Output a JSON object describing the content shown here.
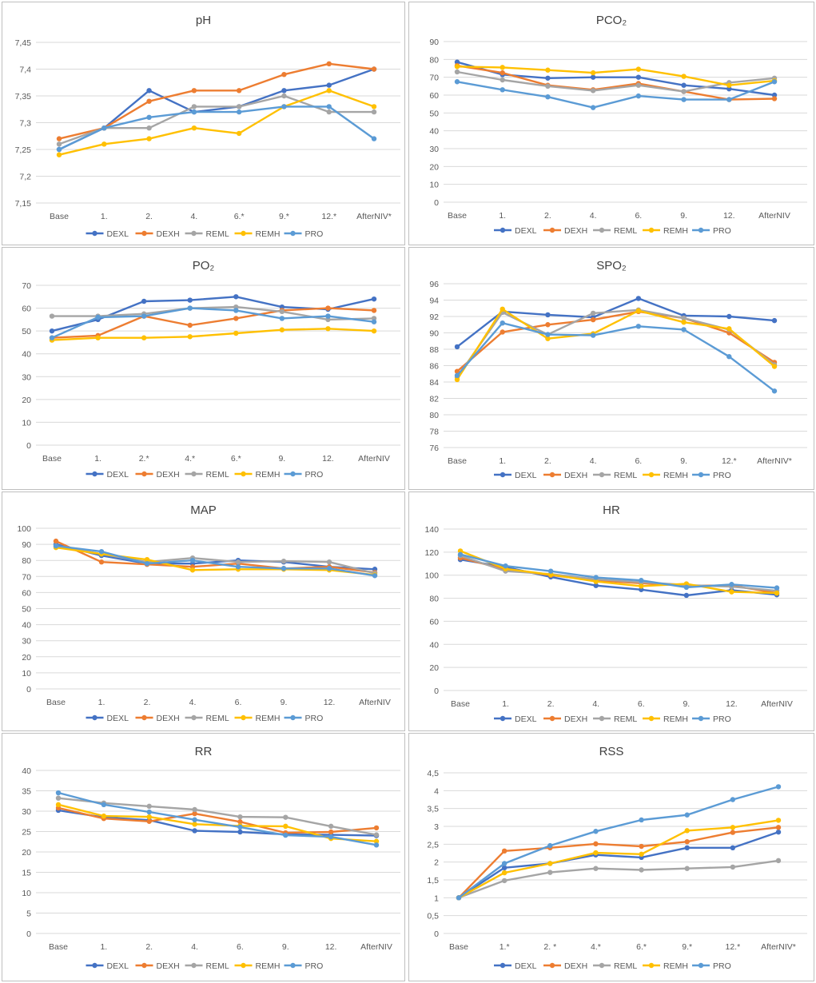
{
  "legend_names": [
    "DEXL",
    "DEXH",
    "REML",
    "REMH",
    "PRO"
  ],
  "colors": {
    "DEXL": "#4472c4",
    "DEXH": "#ed7d31",
    "REML": "#a5a5a5",
    "REMH": "#ffc000",
    "PRO": "#5b9bd5"
  },
  "chart_data": [
    {
      "id": "ph",
      "type": "line",
      "title": "pH",
      "categories": [
        "Base",
        "1.",
        "2.",
        "4.",
        "6.*",
        "9.*",
        "12.*",
        "AfterNIV*"
      ],
      "ylim": [
        7.15,
        7.45
      ],
      "ystep": 0.05,
      "ydec": 2,
      "decimal_comma": true,
      "yticks": [
        "7,15",
        "7,2",
        "7,25",
        "7,3",
        "7,35",
        "7,4",
        "7,45"
      ],
      "series": [
        {
          "name": "DEXL",
          "values": [
            7.25,
            7.29,
            7.36,
            7.32,
            7.33,
            7.36,
            7.37,
            7.4
          ]
        },
        {
          "name": "DEXH",
          "values": [
            7.27,
            7.29,
            7.34,
            7.36,
            7.36,
            7.39,
            7.41,
            7.4
          ]
        },
        {
          "name": "REML",
          "values": [
            7.26,
            7.29,
            7.29,
            7.33,
            7.33,
            7.35,
            7.32,
            7.32
          ]
        },
        {
          "name": "REMH",
          "values": [
            7.24,
            7.26,
            7.27,
            7.29,
            7.28,
            7.33,
            7.36,
            7.33
          ]
        },
        {
          "name": "PRO",
          "values": [
            7.25,
            7.29,
            7.31,
            7.32,
            7.32,
            7.33,
            7.33,
            7.27
          ]
        }
      ]
    },
    {
      "id": "pco2",
      "type": "line",
      "title": "PCO₂",
      "categories": [
        "Base",
        "1.",
        "2.",
        "4.",
        "6.",
        "9.",
        "12.",
        "AfterNIV"
      ],
      "ylim": [
        0,
        90
      ],
      "ystep": 10,
      "ydec": 0,
      "yticks": [
        "0",
        "10",
        "20",
        "30",
        "40",
        "50",
        "60",
        "70",
        "80",
        "90"
      ],
      "series": [
        {
          "name": "DEXL",
          "values": [
            78.5,
            71.5,
            69.5,
            70,
            70,
            65.5,
            63.5,
            60
          ]
        },
        {
          "name": "DEXH",
          "values": [
            76.5,
            72.5,
            65.5,
            63,
            66.5,
            62,
            57.5,
            58
          ]
        },
        {
          "name": "REML",
          "values": [
            73,
            68.5,
            65,
            62.5,
            65.5,
            62,
            67,
            69.5
          ]
        },
        {
          "name": "REMH",
          "values": [
            76,
            75.5,
            74,
            72.5,
            74.5,
            70.5,
            65.5,
            68
          ]
        },
        {
          "name": "PRO",
          "values": [
            67.5,
            63,
            59,
            53,
            59.5,
            57.5,
            57.5,
            67.5
          ]
        }
      ]
    },
    {
      "id": "po2",
      "type": "line",
      "title": "PO₂",
      "categories": [
        "Base",
        "1.",
        "2.*",
        "4.*",
        "6.*",
        "9.",
        "12.",
        "AfterNIV"
      ],
      "ylim": [
        0,
        70
      ],
      "ystep": 10,
      "ydec": 0,
      "yticks": [
        "0",
        "10",
        "20",
        "30",
        "40",
        "50",
        "60",
        "70"
      ],
      "series": [
        {
          "name": "DEXL",
          "values": [
            50,
            55,
            63,
            63.5,
            65,
            60.5,
            59.5,
            64
          ]
        },
        {
          "name": "DEXH",
          "values": [
            47,
            48,
            56.5,
            52.5,
            55.5,
            59,
            60,
            59
          ]
        },
        {
          "name": "REML",
          "values": [
            56.5,
            56.5,
            57.5,
            60,
            60.5,
            58.5,
            55,
            55.5
          ]
        },
        {
          "name": "REMH",
          "values": [
            46,
            47,
            47,
            47.5,
            49,
            50.5,
            51,
            50
          ]
        },
        {
          "name": "PRO",
          "values": [
            47,
            56,
            56.5,
            60,
            59,
            55.5,
            56.5,
            54
          ]
        }
      ]
    },
    {
      "id": "spo2",
      "type": "line",
      "title": "SPO₂",
      "categories": [
        "Base",
        "1.",
        "2.",
        "4.",
        "6.",
        "9.",
        "12.*",
        "AfterNIV*"
      ],
      "ylim": [
        76,
        96
      ],
      "ystep": 2,
      "ydec": 0,
      "yticks": [
        "76",
        "78",
        "80",
        "82",
        "84",
        "86",
        "88",
        "90",
        "92",
        "94",
        "96"
      ],
      "series": [
        {
          "name": "DEXL",
          "values": [
            88.3,
            92.6,
            92.2,
            91.9,
            94.2,
            92.1,
            92,
            91.5
          ]
        },
        {
          "name": "DEXH",
          "values": [
            85.3,
            90.1,
            91,
            91.6,
            92.6,
            91.8,
            90,
            86.4
          ]
        },
        {
          "name": "REML",
          "values": [
            84.6,
            92.5,
            89.8,
            92.4,
            92.8,
            91.8,
            90.4,
            86.1
          ]
        },
        {
          "name": "REMH",
          "values": [
            84.3,
            92.9,
            89.3,
            89.9,
            92.7,
            91.3,
            90.5,
            85.9
          ]
        },
        {
          "name": "PRO",
          "values": [
            84.8,
            91.2,
            89.8,
            89.7,
            90.8,
            90.4,
            87.1,
            82.9
          ]
        }
      ]
    },
    {
      "id": "map",
      "type": "line",
      "title": "MAP",
      "categories": [
        "Base",
        "1.",
        "2.",
        "4.",
        "6.",
        "9.",
        "12.",
        "AfterNIV"
      ],
      "ylim": [
        0,
        100
      ],
      "ystep": 10,
      "ydec": 0,
      "yticks": [
        "0",
        "10",
        "20",
        "30",
        "40",
        "50",
        "60",
        "70",
        "80",
        "90",
        "100"
      ],
      "series": [
        {
          "name": "DEXL",
          "values": [
            90,
            83,
            78,
            78,
            80,
            79,
            76,
            74.5
          ]
        },
        {
          "name": "DEXH",
          "values": [
            92,
            79,
            77.5,
            76,
            78,
            75,
            76,
            72.5
          ]
        },
        {
          "name": "REML",
          "values": [
            89,
            84,
            79,
            81.5,
            79,
            79.5,
            79,
            72
          ]
        },
        {
          "name": "REMH",
          "values": [
            88,
            84,
            80.5,
            74,
            74.5,
            74.5,
            74,
            71
          ]
        },
        {
          "name": "PRO",
          "values": [
            89,
            85.5,
            78,
            80,
            76,
            75,
            75,
            70.5
          ]
        }
      ]
    },
    {
      "id": "hr",
      "type": "line",
      "title": "HR",
      "categories": [
        "Base",
        "1.",
        "2.",
        "4.",
        "6.",
        "9.",
        "12.",
        "AfterNIV"
      ],
      "ylim": [
        0,
        140
      ],
      "ystep": 20,
      "ydec": 0,
      "yticks": [
        "0",
        "20",
        "40",
        "60",
        "80",
        "100",
        "120",
        "140"
      ],
      "series": [
        {
          "name": "DEXL",
          "values": [
            113.5,
            107,
            98.5,
            91,
            87.5,
            82.5,
            87,
            83
          ]
        },
        {
          "name": "DEXH",
          "values": [
            115,
            105,
            100,
            95.5,
            93,
            91,
            91,
            84.5
          ]
        },
        {
          "name": "REML",
          "values": [
            117,
            103.5,
            101,
            96.5,
            94,
            91.5,
            90,
            86.5
          ]
        },
        {
          "name": "REMH",
          "values": [
            121,
            105.5,
            100.5,
            94.5,
            90.5,
            92.5,
            85.5,
            84.5
          ]
        },
        {
          "name": "PRO",
          "values": [
            118,
            108,
            103.5,
            98,
            95.5,
            89.5,
            92,
            89
          ]
        }
      ]
    },
    {
      "id": "rr",
      "type": "line",
      "title": "RR",
      "categories": [
        "Base",
        "1.",
        "2.",
        "4.",
        "6.",
        "9.",
        "12.",
        "AfterNIV"
      ],
      "ylim": [
        0,
        40
      ],
      "ystep": 5,
      "ydec": 0,
      "yticks": [
        "0",
        "5",
        "10",
        "15",
        "20",
        "25",
        "30",
        "35",
        "40"
      ],
      "series": [
        {
          "name": "DEXL",
          "values": [
            30.2,
            28.5,
            27.8,
            25.2,
            24.9,
            24.3,
            24.2,
            24
          ]
        },
        {
          "name": "DEXH",
          "values": [
            30.8,
            28.2,
            27.5,
            29.4,
            27.4,
            24.7,
            24.9,
            25.9
          ]
        },
        {
          "name": "REML",
          "values": [
            33.2,
            32,
            31.2,
            30.4,
            28.6,
            28.5,
            26.3,
            24.2
          ]
        },
        {
          "name": "REMH",
          "values": [
            31.6,
            28.8,
            28.6,
            26.8,
            26.4,
            26.3,
            23.3,
            22.6
          ]
        },
        {
          "name": "PRO",
          "values": [
            34.5,
            31.6,
            29.8,
            27.9,
            26.1,
            24.1,
            23.7,
            21.7
          ]
        }
      ]
    },
    {
      "id": "rss",
      "type": "line",
      "title": "RSS",
      "categories": [
        "Base",
        "1.*",
        "2. *",
        "4.*",
        "6.*",
        "9.*",
        "12.*",
        "AfterNIV*"
      ],
      "ylim": [
        0,
        4.5
      ],
      "ystep": 0.5,
      "ydec": 1,
      "decimal_comma": true,
      "yticks": [
        "0",
        "0,5",
        "1",
        "1,5",
        "2",
        "2,5",
        "3",
        "3,5",
        "4",
        "4,5"
      ],
      "series": [
        {
          "name": "DEXL",
          "values": [
            1,
            1.84,
            1.96,
            2.2,
            2.13,
            2.4,
            2.4,
            2.84
          ]
        },
        {
          "name": "DEXH",
          "values": [
            1,
            2.31,
            2.4,
            2.51,
            2.44,
            2.57,
            2.83,
            2.97
          ]
        },
        {
          "name": "REML",
          "values": [
            1,
            1.48,
            1.71,
            1.82,
            1.78,
            1.82,
            1.86,
            2.04
          ]
        },
        {
          "name": "REMH",
          "values": [
            1,
            1.7,
            1.96,
            2.26,
            2.22,
            2.88,
            2.97,
            3.17
          ]
        },
        {
          "name": "PRO",
          "values": [
            1,
            1.96,
            2.46,
            2.86,
            3.18,
            3.32,
            3.75,
            4.11
          ]
        }
      ]
    }
  ]
}
